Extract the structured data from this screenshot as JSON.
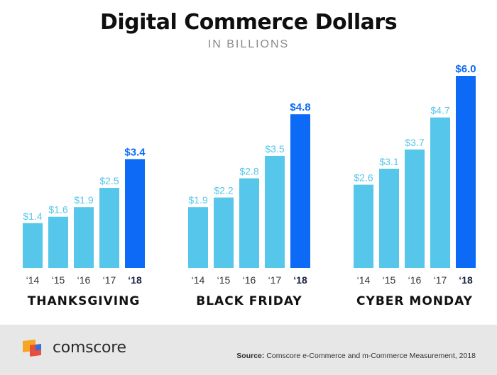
{
  "chart_data": {
    "type": "bar",
    "title": "Digital Commerce Dollars",
    "subtitle": "IN BILLIONS",
    "ylim": [
      0,
      6.4
    ],
    "grid": false,
    "colors": {
      "past": "#56c6ea",
      "current": "#0c6af6",
      "label_past": "#56c6ea",
      "label_current": "#0c6af6"
    },
    "groups": [
      {
        "name": "THANKSGIVING",
        "categories": [
          "‘14",
          "‘15",
          "‘16",
          "‘17",
          "‘18"
        ],
        "values": [
          1.4,
          1.6,
          1.9,
          2.5,
          3.4
        ],
        "labels": [
          "$1.4",
          "$1.6",
          "$1.9",
          "$2.5",
          "$3.4"
        ]
      },
      {
        "name": "BLACK FRIDAY",
        "categories": [
          "‘14",
          "‘15",
          "‘16",
          "‘17",
          "‘18"
        ],
        "values": [
          1.9,
          2.2,
          2.8,
          3.5,
          4.8
        ],
        "labels": [
          "$1.9",
          "$2.2",
          "$2.8",
          "$3.5",
          "$4.8"
        ]
      },
      {
        "name": "CYBER MONDAY",
        "categories": [
          "‘14",
          "‘15",
          "‘16",
          "‘17",
          "‘18"
        ],
        "values": [
          2.6,
          3.1,
          3.7,
          4.7,
          6.0
        ],
        "labels": [
          "$2.6",
          "$3.1",
          "$3.7",
          "$4.7",
          "$6.0"
        ]
      }
    ]
  },
  "footer": {
    "brand": "comscore",
    "source_label": "Source:",
    "source_text": "Comscore e-Commerce and m-Commerce Measurement, 2018"
  },
  "logo_colors": [
    "#f5a623",
    "#e94e3c",
    "#2f6fe0"
  ]
}
